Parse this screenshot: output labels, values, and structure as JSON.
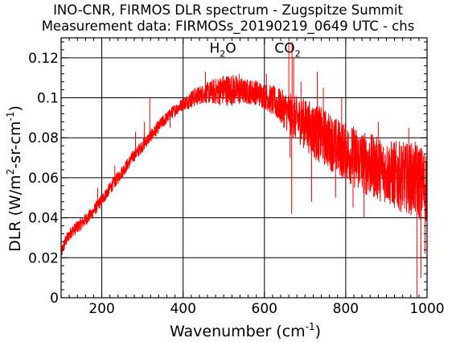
{
  "chart_data": {
    "type": "line",
    "title": "INO-CNR, FIRMOS DLR spectrum - Zugspitze Summit",
    "subtitle": "Measurement data: FIRMOSs_20190219_0649 UTC - chs",
    "xlabel": {
      "main": "Wavenumber (cm",
      "sup": "-1",
      "end": ")"
    },
    "ylabel": {
      "p1": "DLR (W/m",
      "s1": "2",
      "p2": "-sr-cm",
      "s2": "-1",
      "p3": ")"
    },
    "xlim": [
      100,
      1000
    ],
    "ylim": [
      0,
      0.13
    ],
    "x_ticks": [
      200,
      400,
      600,
      800,
      1000
    ],
    "x_tick_labels": [
      "200",
      "400",
      "600",
      "800",
      "1000"
    ],
    "y_ticks": [
      0,
      0.02,
      0.04,
      0.06,
      0.08,
      0.1,
      0.12
    ],
    "y_tick_labels": [
      "0",
      "0.02",
      "0.04",
      "0.06",
      "0.08",
      "0.1",
      "0.12"
    ],
    "grid": true,
    "annotations": [
      {
        "base": "H",
        "sub": "2",
        "rest": "O",
        "x": 540,
        "y": 0.125
      },
      {
        "base": "CO",
        "sub": "2",
        "rest": "",
        "x": 700,
        "y": 0.125
      }
    ],
    "series": [
      {
        "color": "#ff0000",
        "envelope": {
          "x": [
            100,
            110,
            125,
            150,
            175,
            200,
            225,
            250,
            275,
            300,
            325,
            350,
            375,
            400,
            425,
            450,
            475,
            500,
            525,
            550,
            575,
            600,
            625,
            650,
            675,
            700,
            725,
            750,
            775,
            800,
            825,
            850,
            875,
            900,
            925,
            950,
            975,
            1000
          ],
          "y": [
            0.022,
            0.028,
            0.033,
            0.037,
            0.042,
            0.049,
            0.056,
            0.063,
            0.07,
            0.076,
            0.082,
            0.088,
            0.093,
            0.097,
            0.1,
            0.102,
            0.103,
            0.104,
            0.104,
            0.103,
            0.103,
            0.101,
            0.098,
            0.094,
            0.09,
            0.087,
            0.083,
            0.08,
            0.076,
            0.073,
            0.07,
            0.067,
            0.065,
            0.063,
            0.061,
            0.06,
            0.059,
            0.055
          ],
          "noise": [
            0.002,
            0.002,
            0.002,
            0.002,
            0.002,
            0.002,
            0.002,
            0.002,
            0.002,
            0.002,
            0.002,
            0.002,
            0.002,
            0.002,
            0.003,
            0.003,
            0.004,
            0.005,
            0.005,
            0.004,
            0.004,
            0.004,
            0.005,
            0.006,
            0.007,
            0.008,
            0.009,
            0.009,
            0.009,
            0.009,
            0.01,
            0.01,
            0.01,
            0.01,
            0.011,
            0.011,
            0.012,
            0.012
          ]
        },
        "spikes": [
          {
            "x": 190,
            "y": 0.055
          },
          {
            "x": 232,
            "y": 0.066
          },
          {
            "x": 283,
            "y": 0.083
          },
          {
            "x": 305,
            "y": 0.088
          },
          {
            "x": 318,
            "y": 0.1
          },
          {
            "x": 348,
            "y": 0.088
          },
          {
            "x": 368,
            "y": 0.085
          },
          {
            "x": 455,
            "y": 0.113
          },
          {
            "x": 538,
            "y": 0.112
          },
          {
            "x": 605,
            "y": 0.112
          },
          {
            "x": 660,
            "y": 0.128
          },
          {
            "x": 668,
            "y": 0.128
          },
          {
            "x": 672,
            "y": 0.12
          },
          {
            "x": 690,
            "y": 0.108
          },
          {
            "x": 700,
            "y": 0.098
          },
          {
            "x": 720,
            "y": 0.085
          },
          {
            "x": 730,
            "y": 0.113
          },
          {
            "x": 745,
            "y": 0.105
          },
          {
            "x": 790,
            "y": 0.1
          },
          {
            "x": 880,
            "y": 0.088
          },
          {
            "x": 955,
            "y": 0.085
          },
          {
            "x": 663,
            "y": 0.07
          },
          {
            "x": 667,
            "y": 0.042
          },
          {
            "x": 716,
            "y": 0.048
          },
          {
            "x": 775,
            "y": 0.05
          },
          {
            "x": 818,
            "y": 0.045
          },
          {
            "x": 845,
            "y": 0.04
          },
          {
            "x": 975,
            "y": 0.0
          },
          {
            "x": 985,
            "y": 0.01
          },
          {
            "x": 995,
            "y": 0.022
          }
        ]
      }
    ]
  }
}
